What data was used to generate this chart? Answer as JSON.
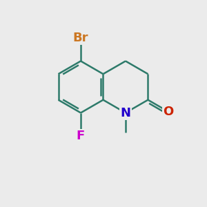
{
  "background_color": "#EBEBEB",
  "bond_color": "#2d7a6a",
  "bond_width": 1.8,
  "atom_colors": {
    "Br": "#CC7722",
    "F": "#CC00CC",
    "N": "#2200CC",
    "O": "#CC2200"
  },
  "font_size": 13,
  "label_bg": "#EBEBEB",
  "s": 1.25
}
